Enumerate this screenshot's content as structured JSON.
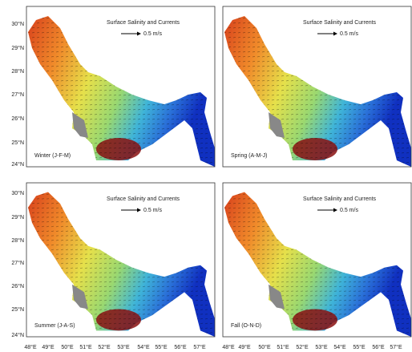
{
  "panels": [
    {
      "title": "Surface Salinity and Currents",
      "scale_label": "0.5 m/s",
      "season": "Winter (J-F-M)"
    },
    {
      "title": "Surface Salinity and Currents",
      "scale_label": "0.5 m/s",
      "season": "Spring (A-M-J)"
    },
    {
      "title": "Surface Salinity and Currents",
      "scale_label": "0.5 m/s",
      "season": "Summer (J-A-S)"
    },
    {
      "title": "Surface Salinity and Currents",
      "scale_label": "0.5 m/s",
      "season": "Fall (O-N-D)"
    }
  ],
  "y_tick_labels": [
    "30°N",
    "29°N",
    "28°N",
    "27°N",
    "26°N",
    "25°N",
    "24°N"
  ],
  "x_tick_labels": [
    "48°E",
    "49°E",
    "50°E",
    "51°E",
    "52°E",
    "53°E",
    "54°E",
    "55°E",
    "56°E",
    "57°E"
  ]
}
